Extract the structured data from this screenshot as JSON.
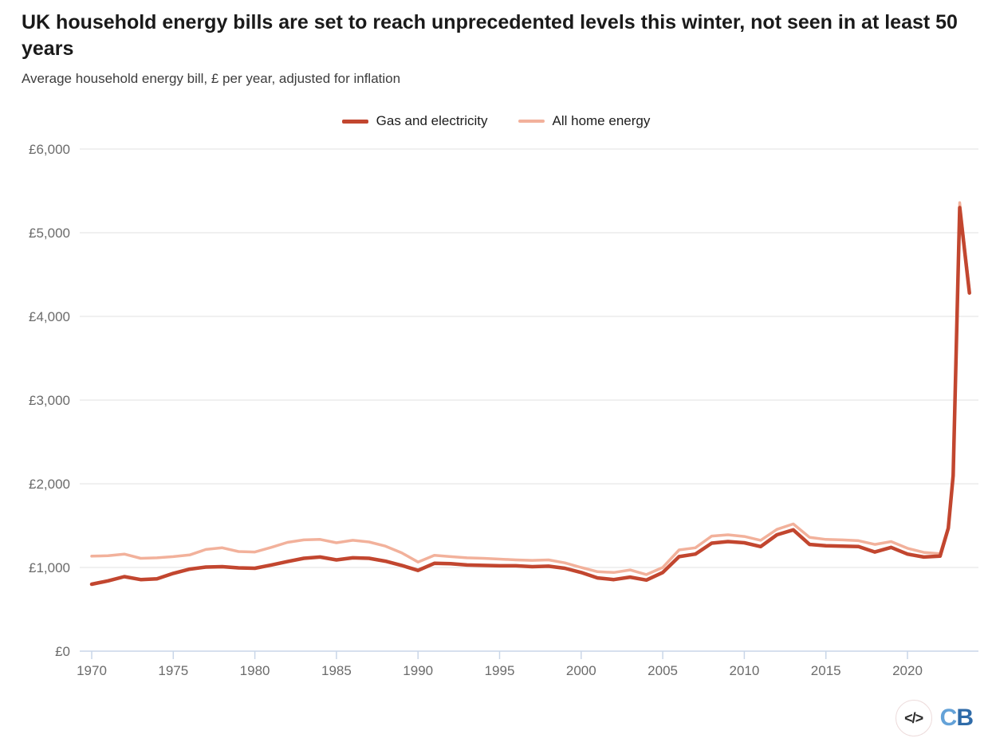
{
  "header": {
    "title": "UK household energy bills are set to reach unprecedented levels this winter, not seen in at least 50 years",
    "subtitle": "Average household energy bill, £ per year, adjusted for inflation"
  },
  "legend": [
    {
      "label": "Gas and electricity",
      "color": "#c2462f"
    },
    {
      "label": "All home energy",
      "color": "#f2b19b"
    }
  ],
  "footer": {
    "code_glyph": "</>",
    "logo_c": "C",
    "logo_b": "B"
  },
  "chart_data": {
    "type": "line",
    "title": "UK household energy bills are set to reach unprecedented levels this winter, not seen in at least 50 years",
    "subtitle": "Average household energy bill, £ per year, adjusted for inflation",
    "xlabel": "",
    "ylabel": "£ per year",
    "xlim": [
      1969.3,
      2024.4
    ],
    "ylim": [
      0,
      6000
    ],
    "grid": "horizontal",
    "legend_position": "top-center",
    "colors": {
      "grid": "#ebebeb",
      "axis": "#c9d6e8",
      "tick_text": "#6b6b6b"
    },
    "y_ticks": [
      0,
      1000,
      2000,
      3000,
      4000,
      5000,
      6000
    ],
    "y_tick_labels": [
      "£0",
      "£1,000",
      "£2,000",
      "£3,000",
      "£4,000",
      "£5,000",
      "£6,000"
    ],
    "x_ticks": [
      1970,
      1975,
      1980,
      1985,
      1990,
      1995,
      2000,
      2005,
      2010,
      2015,
      2020
    ],
    "x_tick_labels": [
      "1970",
      "1975",
      "1980",
      "1985",
      "1990",
      "1995",
      "2000",
      "2005",
      "2010",
      "2015",
      "2020"
    ],
    "series": [
      {
        "name": "All home energy",
        "color": "#f2b19b",
        "stroke_width": 3.5,
        "points": [
          [
            1970,
            1135
          ],
          [
            1971,
            1140
          ],
          [
            1972,
            1160
          ],
          [
            1973,
            1110
          ],
          [
            1974,
            1115
          ],
          [
            1975,
            1130
          ],
          [
            1976,
            1150
          ],
          [
            1977,
            1215
          ],
          [
            1978,
            1235
          ],
          [
            1979,
            1190
          ],
          [
            1980,
            1185
          ],
          [
            1981,
            1240
          ],
          [
            1982,
            1300
          ],
          [
            1983,
            1330
          ],
          [
            1984,
            1335
          ],
          [
            1985,
            1295
          ],
          [
            1986,
            1325
          ],
          [
            1987,
            1305
          ],
          [
            1988,
            1255
          ],
          [
            1989,
            1175
          ],
          [
            1990,
            1065
          ],
          [
            1991,
            1145
          ],
          [
            1992,
            1130
          ],
          [
            1993,
            1115
          ],
          [
            1994,
            1110
          ],
          [
            1995,
            1100
          ],
          [
            1996,
            1090
          ],
          [
            1997,
            1085
          ],
          [
            1998,
            1090
          ],
          [
            1999,
            1055
          ],
          [
            2000,
            1000
          ],
          [
            2001,
            950
          ],
          [
            2002,
            940
          ],
          [
            2003,
            970
          ],
          [
            2004,
            915
          ],
          [
            2005,
            1000
          ],
          [
            2006,
            1210
          ],
          [
            2007,
            1235
          ],
          [
            2008,
            1375
          ],
          [
            2009,
            1390
          ],
          [
            2010,
            1370
          ],
          [
            2011,
            1325
          ],
          [
            2012,
            1455
          ],
          [
            2013,
            1520
          ],
          [
            2014,
            1360
          ],
          [
            2015,
            1335
          ],
          [
            2016,
            1330
          ],
          [
            2017,
            1320
          ],
          [
            2018,
            1275
          ],
          [
            2019,
            1310
          ],
          [
            2020,
            1230
          ],
          [
            2021,
            1180
          ],
          [
            2022,
            1165
          ],
          [
            2022.5,
            1480
          ],
          [
            2022.8,
            2120
          ],
          [
            2023.2,
            5360
          ],
          [
            2023.8,
            4310
          ]
        ]
      },
      {
        "name": "Gas and electricity",
        "color": "#c2462f",
        "stroke_width": 4.5,
        "points": [
          [
            1970,
            800
          ],
          [
            1971,
            840
          ],
          [
            1972,
            890
          ],
          [
            1973,
            855
          ],
          [
            1974,
            865
          ],
          [
            1975,
            930
          ],
          [
            1976,
            980
          ],
          [
            1977,
            1005
          ],
          [
            1978,
            1010
          ],
          [
            1979,
            995
          ],
          [
            1980,
            990
          ],
          [
            1981,
            1030
          ],
          [
            1982,
            1070
          ],
          [
            1983,
            1110
          ],
          [
            1984,
            1125
          ],
          [
            1985,
            1090
          ],
          [
            1986,
            1115
          ],
          [
            1987,
            1110
          ],
          [
            1988,
            1075
          ],
          [
            1989,
            1025
          ],
          [
            1990,
            965
          ],
          [
            1991,
            1050
          ],
          [
            1992,
            1045
          ],
          [
            1993,
            1030
          ],
          [
            1994,
            1025
          ],
          [
            1995,
            1020
          ],
          [
            1996,
            1020
          ],
          [
            1997,
            1010
          ],
          [
            1998,
            1015
          ],
          [
            1999,
            990
          ],
          [
            2000,
            940
          ],
          [
            2001,
            875
          ],
          [
            2002,
            855
          ],
          [
            2003,
            885
          ],
          [
            2004,
            850
          ],
          [
            2005,
            940
          ],
          [
            2006,
            1130
          ],
          [
            2007,
            1160
          ],
          [
            2008,
            1290
          ],
          [
            2009,
            1310
          ],
          [
            2010,
            1295
          ],
          [
            2011,
            1250
          ],
          [
            2012,
            1390
          ],
          [
            2013,
            1450
          ],
          [
            2014,
            1275
          ],
          [
            2015,
            1260
          ],
          [
            2016,
            1255
          ],
          [
            2017,
            1250
          ],
          [
            2018,
            1185
          ],
          [
            2019,
            1240
          ],
          [
            2020,
            1160
          ],
          [
            2021,
            1125
          ],
          [
            2022,
            1135
          ],
          [
            2022.5,
            1470
          ],
          [
            2022.8,
            2100
          ],
          [
            2023.2,
            5300
          ],
          [
            2023.8,
            4280
          ]
        ]
      }
    ]
  }
}
